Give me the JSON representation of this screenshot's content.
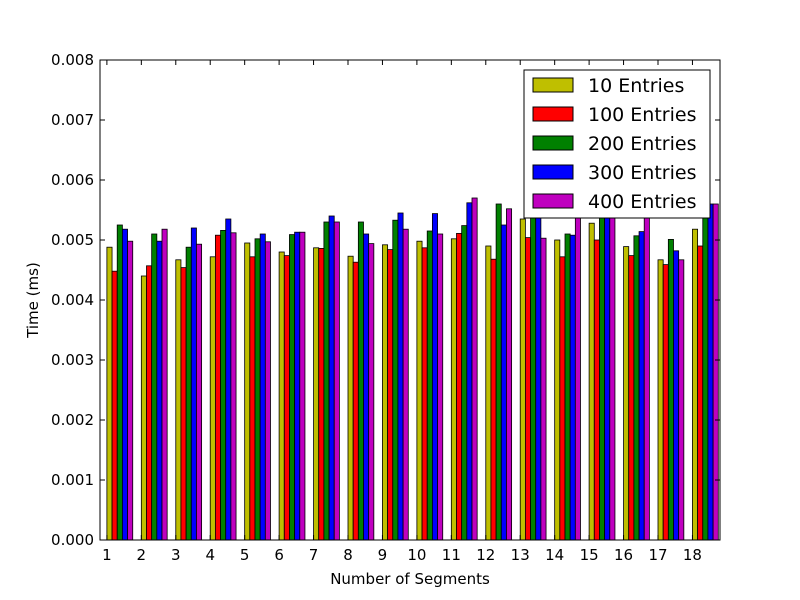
{
  "chart_data": {
    "type": "bar",
    "xlabel": "Number of Segments",
    "ylabel": "Time (ms)",
    "ylim": [
      0,
      0.008
    ],
    "yticks": [
      "0.000",
      "0.001",
      "0.002",
      "0.003",
      "0.004",
      "0.005",
      "0.006",
      "0.007",
      "0.008"
    ],
    "categories": [
      "1",
      "2",
      "3",
      "4",
      "5",
      "6",
      "7",
      "8",
      "9",
      "10",
      "11",
      "12",
      "13",
      "14",
      "15",
      "16",
      "17",
      "18"
    ],
    "legend_position": "top-right",
    "series": [
      {
        "name": "10 Entries",
        "color": "#bfbf00",
        "values": [
          0.00488,
          0.0044,
          0.00467,
          0.00472,
          0.00495,
          0.0048,
          0.00487,
          0.00473,
          0.00492,
          0.00498,
          0.00502,
          0.0049,
          0.00535,
          0.005,
          0.00528,
          0.00489,
          0.00467,
          0.00518
        ]
      },
      {
        "name": "100 Entries",
        "color": "#ff0000",
        "values": [
          0.00448,
          0.00457,
          0.00454,
          0.00508,
          0.00472,
          0.00474,
          0.00486,
          0.00463,
          0.00484,
          0.00487,
          0.00511,
          0.00468,
          0.00504,
          0.00472,
          0.005,
          0.00474,
          0.00459,
          0.0049
        ]
      },
      {
        "name": "200 Entries",
        "color": "#008000",
        "values": [
          0.00525,
          0.0051,
          0.00488,
          0.00516,
          0.00502,
          0.00509,
          0.0053,
          0.0053,
          0.00533,
          0.00515,
          0.00524,
          0.0056,
          0.0056,
          0.0051,
          0.0056,
          0.00507,
          0.00501,
          0.0056
        ]
      },
      {
        "name": "300 Entries",
        "color": "#0000ff",
        "values": [
          0.00518,
          0.00498,
          0.0052,
          0.00535,
          0.0051,
          0.00513,
          0.0054,
          0.0051,
          0.00545,
          0.00544,
          0.00562,
          0.00525,
          0.0056,
          0.00508,
          0.0056,
          0.00514,
          0.00482,
          0.0056
        ]
      },
      {
        "name": "400 Entries",
        "color": "#bf00bf",
        "values": [
          0.00498,
          0.00518,
          0.00493,
          0.00512,
          0.00497,
          0.00513,
          0.0053,
          0.00494,
          0.00518,
          0.0051,
          0.0057,
          0.00552,
          0.00503,
          0.0054,
          0.0056,
          0.0056,
          0.00467,
          0.0056
        ]
      }
    ]
  }
}
